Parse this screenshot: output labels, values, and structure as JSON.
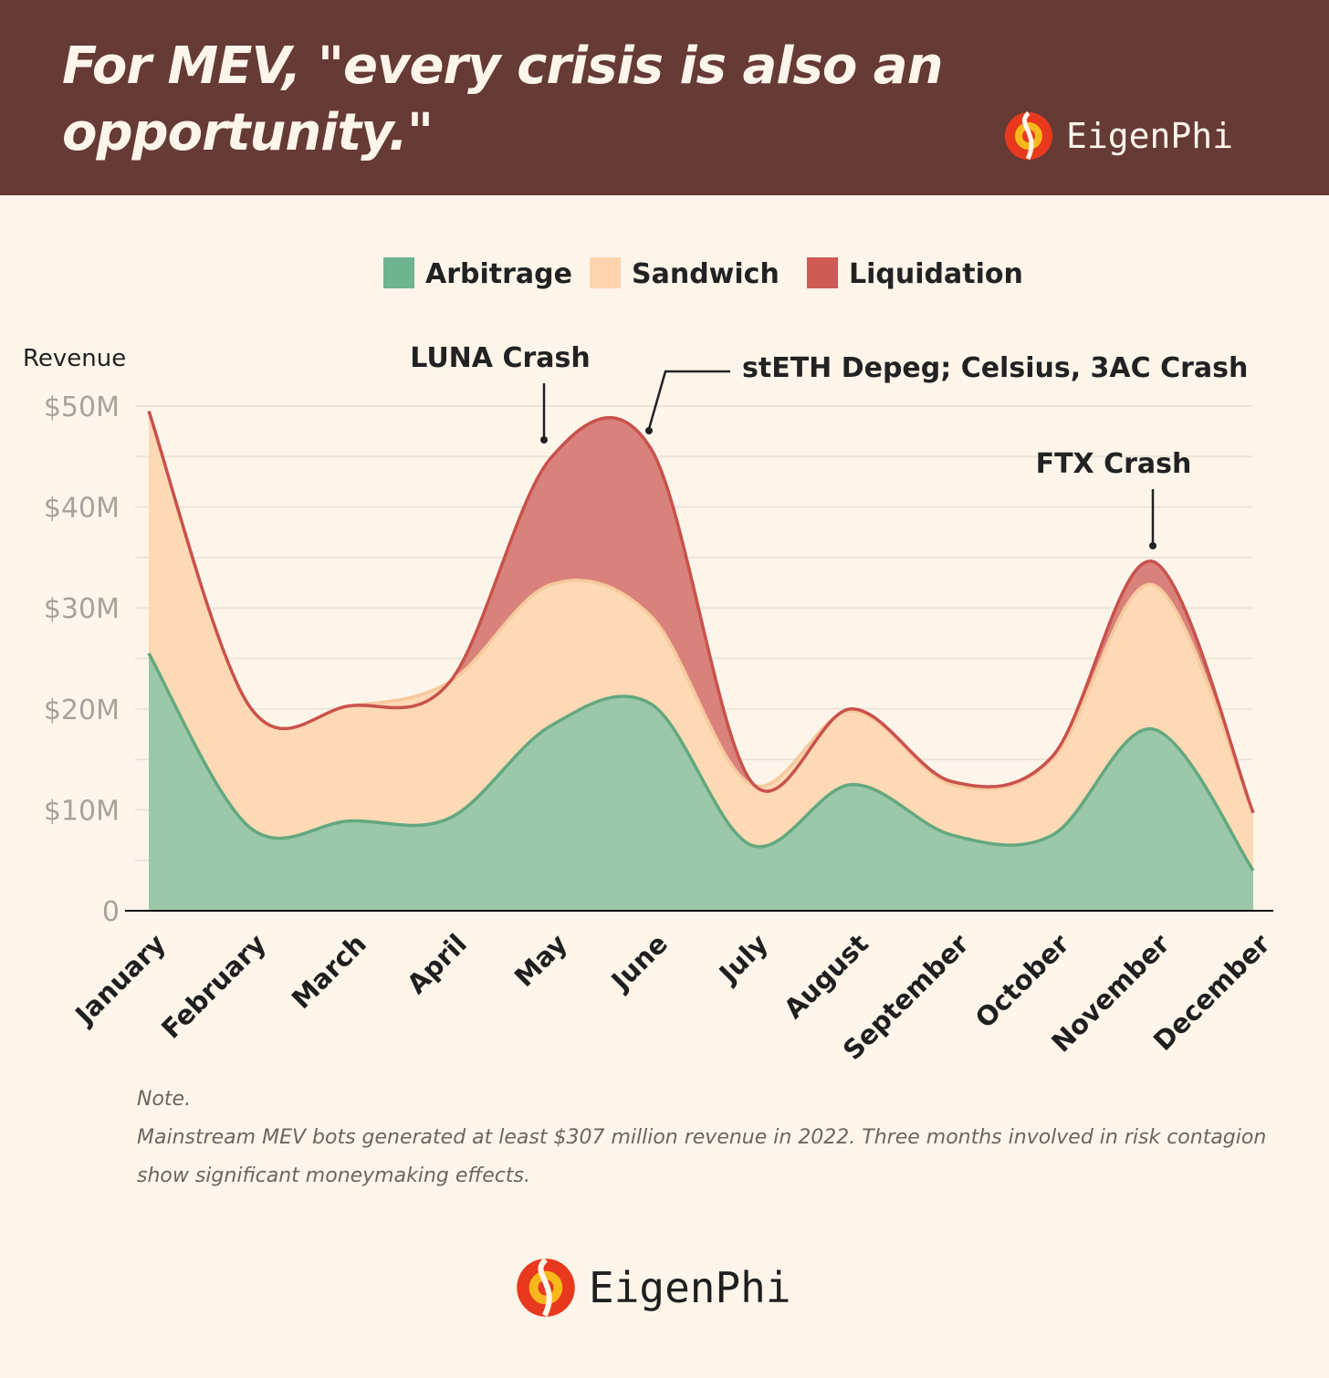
{
  "header": {
    "title": "For MEV, \"every crisis is also an opportunity.\"",
    "brand": "EigenPhi"
  },
  "chart_data": {
    "type": "area",
    "stacked": true,
    "ylabel": "Revenue",
    "categories": [
      "January",
      "February",
      "March",
      "April",
      "May",
      "June",
      "July",
      "August",
      "September",
      "October",
      "November",
      "December"
    ],
    "y_ticks": [
      "0",
      "$10M",
      "$20M",
      "$30M",
      "$40M",
      "$50M"
    ],
    "ylim": [
      0,
      50
    ],
    "grid": true,
    "legend_position": "top-center",
    "series": [
      {
        "name": "Arbitrage",
        "color": "#6fb48e",
        "values": [
          25.5,
          8.3,
          8.9,
          9.2,
          18.3,
          20.5,
          6.5,
          12.5,
          7.5,
          7.5,
          18.0,
          4.0
        ]
      },
      {
        "name": "Sandwich",
        "color": "#fcd4ae",
        "values": [
          24.0,
          12.0,
          11.4,
          13.5,
          14.0,
          8.7,
          6.0,
          7.3,
          5.0,
          7.5,
          14.3,
          5.7
        ]
      },
      {
        "name": "Liquidation",
        "color": "#cf5b55",
        "values": [
          0,
          0,
          0,
          0,
          12.5,
          16.6,
          0.3,
          0.2,
          0.3,
          0.3,
          2.3,
          0
        ]
      }
    ],
    "annotations": [
      {
        "text": "LUNA Crash",
        "month": "May"
      },
      {
        "text": "stETH Depeg; Celsius, 3AC Crash",
        "month": "June"
      },
      {
        "text": "FTX Crash",
        "month": "November"
      }
    ]
  },
  "note": {
    "heading": "Note.",
    "text": "Mainstream MEV bots generated at least $307 million revenue in 2022. Three months involved in risk contagion show significant moneymaking effects."
  },
  "footer": {
    "brand": "EigenPhi"
  },
  "colors": {
    "header_bg": "#663a35",
    "page_bg": "#fdf5ea",
    "logo_red": "#e8391e",
    "logo_yellow": "#f7b81c"
  }
}
